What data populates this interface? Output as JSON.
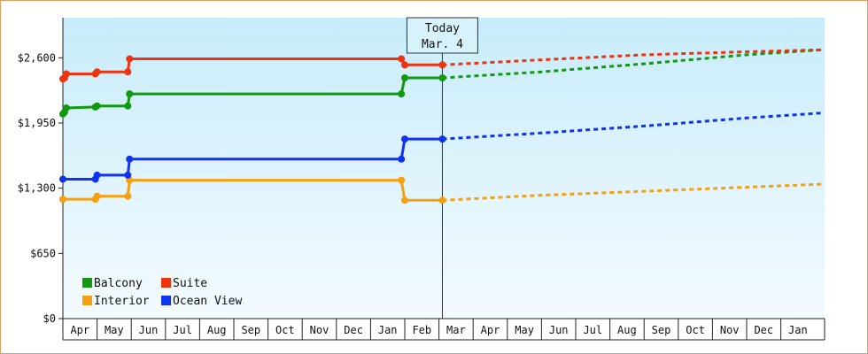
{
  "chart_data": {
    "type": "line",
    "title": "",
    "xlabel": "",
    "ylabel": "",
    "ylim": [
      0,
      3000
    ],
    "y_ticks": [
      0,
      650,
      1300,
      1950,
      2600
    ],
    "y_tick_labels": [
      "$0",
      "$650",
      "$1,300",
      "$1,950",
      "$2,600"
    ],
    "x_range_months": [
      0,
      22.2
    ],
    "month_labels": [
      "Apr",
      "May",
      "Jun",
      "Jul",
      "Aug",
      "Sep",
      "Oct",
      "Nov",
      "Dec",
      "Jan",
      "Feb",
      "Mar",
      "Apr",
      "May",
      "Jun",
      "Jul",
      "Aug",
      "Sep",
      "Oct",
      "Nov",
      "Dec",
      "Jan"
    ],
    "today": {
      "line1": "Today",
      "line2": "Mar. 4",
      "x": 11.1
    },
    "grid": false,
    "legend_position": "bottom-left",
    "series": [
      {
        "name": "Balcony",
        "color": "#119911",
        "points": [
          [
            0.0,
            2040
          ],
          [
            0.05,
            2060
          ],
          [
            0.1,
            2100
          ],
          [
            0.95,
            2110
          ],
          [
            1.0,
            2120
          ],
          [
            1.9,
            2120
          ],
          [
            1.95,
            2240
          ],
          [
            9.9,
            2240
          ],
          [
            10.0,
            2400
          ],
          [
            11.1,
            2400
          ]
        ],
        "projection": [
          [
            11.1,
            2400
          ],
          [
            14.0,
            2460
          ],
          [
            17.0,
            2540
          ],
          [
            20.0,
            2630
          ],
          [
            22.2,
            2680
          ]
        ]
      },
      {
        "name": "Suite",
        "color": "#ee3311",
        "points": [
          [
            0.0,
            2390
          ],
          [
            0.05,
            2400
          ],
          [
            0.1,
            2440
          ],
          [
            0.95,
            2440
          ],
          [
            1.0,
            2460
          ],
          [
            1.9,
            2460
          ],
          [
            1.95,
            2590
          ],
          [
            9.9,
            2590
          ],
          [
            10.0,
            2530
          ],
          [
            11.1,
            2530
          ]
        ],
        "projection": [
          [
            11.1,
            2530
          ],
          [
            14.0,
            2580
          ],
          [
            17.0,
            2630
          ],
          [
            20.0,
            2660
          ],
          [
            22.2,
            2680
          ]
        ]
      },
      {
        "name": "Interior",
        "color": "#f4a010",
        "points": [
          [
            0.0,
            1190
          ],
          [
            0.95,
            1190
          ],
          [
            1.0,
            1220
          ],
          [
            1.9,
            1220
          ],
          [
            1.95,
            1380
          ],
          [
            9.9,
            1380
          ],
          [
            10.0,
            1180
          ],
          [
            11.1,
            1180
          ]
        ],
        "projection": [
          [
            11.1,
            1180
          ],
          [
            14.0,
            1230
          ],
          [
            17.0,
            1270
          ],
          [
            20.0,
            1310
          ],
          [
            22.2,
            1340
          ]
        ]
      },
      {
        "name": "Ocean View",
        "color": "#1133ee",
        "points": [
          [
            0.0,
            1390
          ],
          [
            0.95,
            1390
          ],
          [
            1.0,
            1430
          ],
          [
            1.9,
            1430
          ],
          [
            1.95,
            1590
          ],
          [
            9.9,
            1590
          ],
          [
            10.0,
            1790
          ],
          [
            11.1,
            1790
          ]
        ],
        "projection": [
          [
            11.1,
            1790
          ],
          [
            14.0,
            1850
          ],
          [
            17.0,
            1920
          ],
          [
            20.0,
            2000
          ],
          [
            22.2,
            2050
          ]
        ]
      }
    ]
  }
}
